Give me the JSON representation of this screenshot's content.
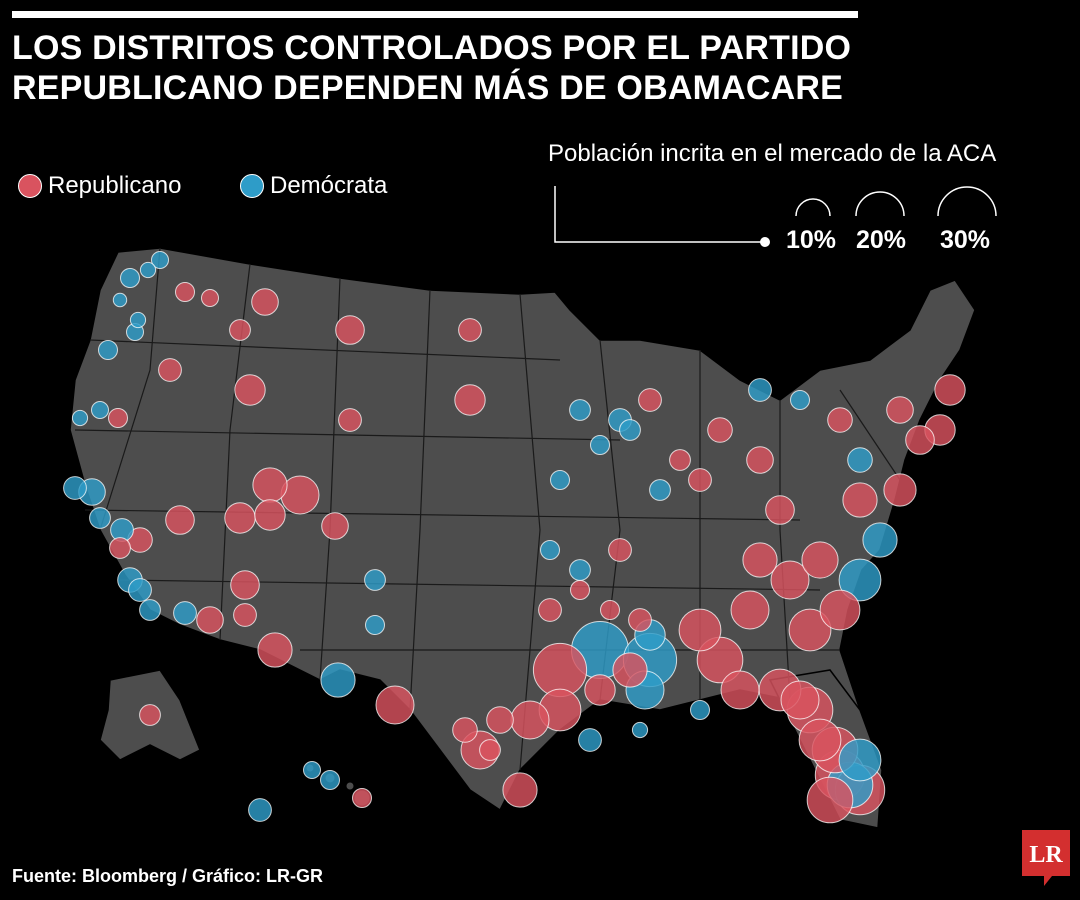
{
  "title": {
    "line1": "LOS DISTRITOS CONTROLADOS POR EL PARTIDO",
    "line2": "REPUBLICANO DEPENDEN MÁS DE OBAMACARE"
  },
  "legend": {
    "republican": {
      "label": "Republicano",
      "color": "#d9535f"
    },
    "democrat": {
      "label": "Demócrata",
      "color": "#2e9cc8"
    }
  },
  "size_legend": {
    "title": "Población incrita en el mercado de la ACA",
    "items": [
      "10%",
      "20%",
      "30%"
    ]
  },
  "map": {
    "land_color": "#4d4d4d",
    "border_color": "#000000",
    "districts": [
      {
        "party": "D",
        "share": 0.1
      },
      {
        "party": "D",
        "share": 0.08
      },
      {
        "party": "D",
        "share": 0.09
      },
      {
        "party": "D",
        "share": 0.07
      },
      {
        "party": "D",
        "share": 0.08
      },
      {
        "party": "D",
        "share": 0.1
      },
      {
        "party": "R",
        "share": 0.1
      },
      {
        "party": "R",
        "share": 0.09
      },
      {
        "party": "R",
        "share": 0.14
      },
      {
        "party": "R",
        "share": 0.11
      },
      {
        "party": "R",
        "share": 0.15
      },
      {
        "party": "R",
        "share": 0.12
      },
      {
        "party": "D",
        "share": 0.09
      },
      {
        "party": "D",
        "share": 0.08
      },
      {
        "party": "D",
        "share": 0.09
      },
      {
        "party": "R",
        "share": 0.1
      },
      {
        "party": "R",
        "share": 0.12
      },
      {
        "party": "R",
        "share": 0.16
      },
      {
        "party": "R",
        "share": 0.12
      },
      {
        "party": "R",
        "share": 0.16
      },
      {
        "party": "D",
        "share": 0.12
      },
      {
        "party": "D",
        "share": 0.14
      },
      {
        "party": "D",
        "share": 0.11
      },
      {
        "party": "D",
        "share": 0.12
      },
      {
        "party": "R",
        "share": 0.11
      },
      {
        "party": "R",
        "share": 0.13
      },
      {
        "party": "R",
        "share": 0.18
      },
      {
        "party": "R",
        "share": 0.2
      },
      {
        "party": "R",
        "share": 0.16
      },
      {
        "party": "R",
        "share": 0.14
      },
      {
        "party": "D",
        "share": 0.13
      },
      {
        "party": "D",
        "share": 0.11
      },
      {
        "party": "D",
        "share": 0.12
      },
      {
        "party": "D",
        "share": 0.12
      },
      {
        "party": "R",
        "share": 0.14
      },
      {
        "party": "R",
        "share": 0.12
      },
      {
        "party": "R",
        "share": 0.18
      },
      {
        "party": "R",
        "share": 0.15
      },
      {
        "party": "D",
        "share": 0.11
      },
      {
        "party": "D",
        "share": 0.1
      },
      {
        "party": "R",
        "share": 0.16
      },
      {
        "party": "R",
        "share": 0.15
      },
      {
        "party": "D",
        "share": 0.18
      },
      {
        "party": "R",
        "share": 0.2
      },
      {
        "party": "R",
        "share": 0.13
      },
      {
        "party": "R",
        "share": 0.11
      },
      {
        "party": "R",
        "share": 0.14
      },
      {
        "party": "R",
        "share": 0.2
      },
      {
        "party": "R",
        "share": 0.18
      },
      {
        "party": "R",
        "share": 0.2
      },
      {
        "party": "R",
        "share": 0.22
      },
      {
        "party": "R",
        "share": 0.16
      },
      {
        "party": "R",
        "share": 0.18
      },
      {
        "party": "D",
        "share": 0.2
      },
      {
        "party": "D",
        "share": 0.16
      },
      {
        "party": "R",
        "share": 0.22
      },
      {
        "party": "R",
        "share": 0.24
      },
      {
        "party": "R",
        "share": 0.2
      },
      {
        "party": "R",
        "share": 0.22
      },
      {
        "party": "R",
        "share": 0.2
      },
      {
        "party": "D",
        "share": 0.24
      },
      {
        "party": "D",
        "share": 0.22
      },
      {
        "party": "R",
        "share": 0.12
      },
      {
        "party": "R",
        "share": 0.1
      },
      {
        "party": "R",
        "share": 0.1
      },
      {
        "party": "R",
        "share": 0.12
      },
      {
        "party": "D",
        "share": 0.11
      },
      {
        "party": "D",
        "share": 0.1
      },
      {
        "party": "R",
        "share": 0.12
      },
      {
        "party": "R",
        "share": 0.11
      },
      {
        "party": "R",
        "share": 0.12
      },
      {
        "party": "D",
        "share": 0.12
      },
      {
        "party": "D",
        "share": 0.1
      },
      {
        "party": "R",
        "share": 0.13
      },
      {
        "party": "R",
        "share": 0.14
      },
      {
        "party": "R",
        "share": 0.15
      },
      {
        "party": "R",
        "share": 0.13
      },
      {
        "party": "D",
        "share": 0.13
      },
      {
        "party": "R",
        "share": 0.14
      },
      {
        "party": "R",
        "share": 0.15
      },
      {
        "party": "R",
        "share": 0.16
      },
      {
        "party": "R",
        "share": 0.16
      },
      {
        "party": "R",
        "share": 0.18
      },
      {
        "party": "R",
        "share": 0.17
      },
      {
        "party": "D",
        "share": 0.18
      },
      {
        "party": "R",
        "share": 0.18
      },
      {
        "party": "R",
        "share": 0.2
      },
      {
        "party": "R",
        "share": 0.19
      },
      {
        "party": "R",
        "share": 0.2
      },
      {
        "party": "R",
        "share": 0.22
      },
      {
        "party": "R",
        "share": 0.21
      },
      {
        "party": "D",
        "share": 0.22
      },
      {
        "party": "R",
        "share": 0.24
      },
      {
        "party": "R",
        "share": 0.22
      },
      {
        "party": "R",
        "share": 0.24
      },
      {
        "party": "R",
        "share": 0.26
      },
      {
        "party": "R",
        "share": 0.24
      },
      {
        "party": "R",
        "share": 0.26
      },
      {
        "party": "D",
        "share": 0.28
      },
      {
        "party": "D",
        "share": 0.3
      },
      {
        "party": "R",
        "share": 0.28
      },
      {
        "party": "D",
        "share": 0.12
      },
      {
        "party": "D",
        "share": 0.11
      },
      {
        "party": "D",
        "share": 0.12
      },
      {
        "party": "D",
        "share": 0.1
      },
      {
        "party": "D",
        "share": 0.11
      },
      {
        "party": "D",
        "share": 0.1
      },
      {
        "party": "D",
        "share": 0.11
      },
      {
        "party": "R",
        "share": 0.12
      },
      {
        "party": "R",
        "share": 0.11
      },
      {
        "party": "D",
        "share": 0.12
      },
      {
        "party": "D",
        "share": 0.09
      },
      {
        "party": "D",
        "share": 0.1
      },
      {
        "party": "R",
        "share": 0.1
      },
      {
        "party": "D",
        "share": 0.08
      },
      {
        "party": "D",
        "share": 0.1
      }
    ]
  },
  "source": "Fuente: Bloomberg / Gráfico: LR-GR",
  "logo": "LR"
}
